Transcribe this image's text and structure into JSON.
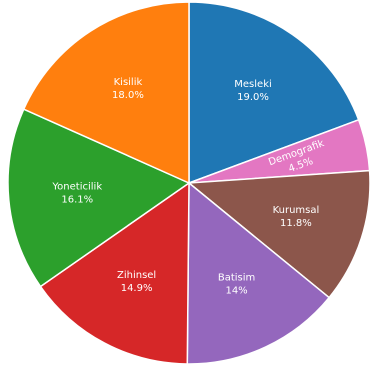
{
  "chart_data": {
    "type": "pie",
    "start_angle_deg": 90,
    "direction": "clockwise",
    "slices": [
      {
        "label": "Mesleki",
        "pct_text": "19.0%",
        "value": 19.0,
        "color": "#1f77b4"
      },
      {
        "label": "Demografik",
        "pct_text": "4.5%",
        "value": 4.5,
        "color": "#e377c2"
      },
      {
        "label": "Kurumsal",
        "pct_text": "11.8%",
        "value": 11.8,
        "color": "#8c564b"
      },
      {
        "label": "Batisim",
        "pct_text": "14%",
        "value": 14.0,
        "color": "#9467bd"
      },
      {
        "label": "Zihinsel",
        "pct_text": "14.9%",
        "value": 14.9,
        "color": "#d62728"
      },
      {
        "label": "Yoneticilik",
        "pct_text": "16.1%",
        "value": 16.1,
        "color": "#2ca02c"
      },
      {
        "label": "Kisilik",
        "pct_text": "18.0%",
        "value": 18.0,
        "color": "#ff7f0e"
      }
    ]
  }
}
